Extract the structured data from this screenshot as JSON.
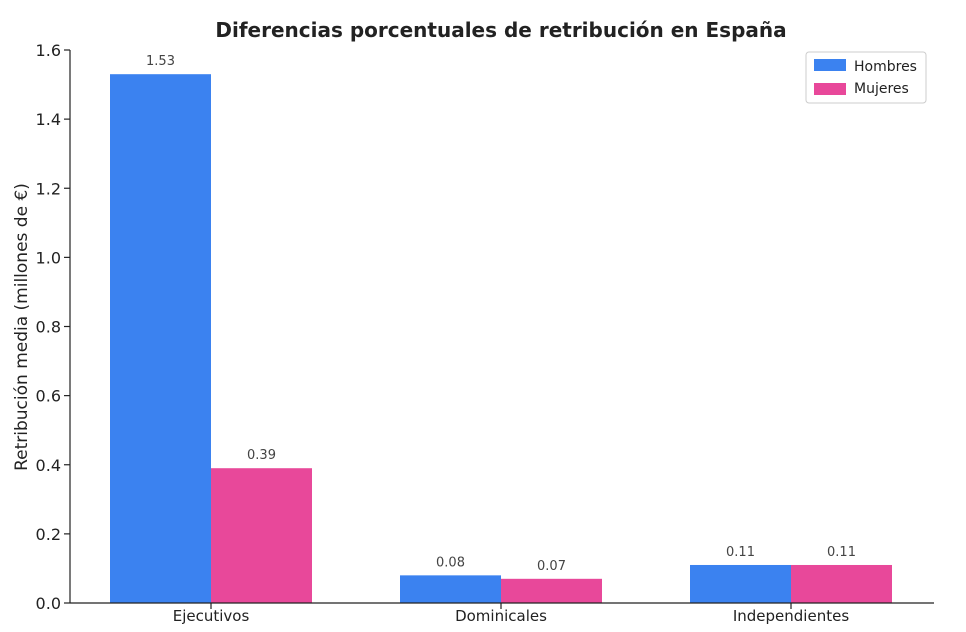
{
  "chart_data": {
    "type": "bar",
    "title": "Diferencias porcentuales de retribución en España",
    "xlabel": "",
    "ylabel": "Retribución media (millones de €)",
    "categories": [
      "Ejecutivos",
      "Dominicales",
      "Independientes"
    ],
    "series": [
      {
        "name": "Hombres",
        "color": "#3b82f0",
        "values": [
          1.53,
          0.08,
          0.11
        ],
        "labels": [
          "1.53",
          "0.08",
          "0.11"
        ]
      },
      {
        "name": "Mujeres",
        "color": "#e8489a",
        "values": [
          0.39,
          0.07,
          0.11
        ],
        "labels": [
          "0.39",
          "0.07",
          "0.11"
        ]
      }
    ],
    "ylim": [
      0,
      1.6
    ],
    "yticks": [
      0.0,
      0.2,
      0.4,
      0.6,
      0.8,
      1.0,
      1.2,
      1.4,
      1.6
    ],
    "ytick_labels": [
      "0.0",
      "0.2",
      "0.4",
      "0.6",
      "0.8",
      "1.0",
      "1.2",
      "1.4",
      "1.6"
    ],
    "grid": false,
    "legend_position": "top-right"
  }
}
